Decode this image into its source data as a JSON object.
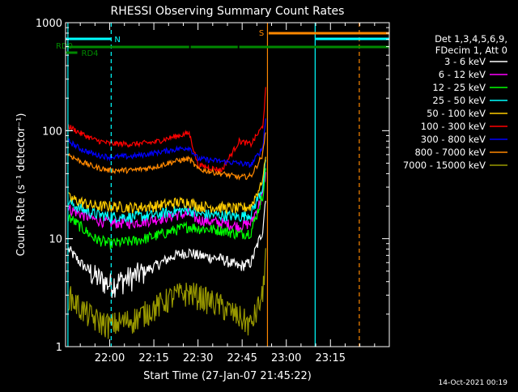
{
  "chart_data": {
    "type": "line",
    "title": "RHESSI Observing Summary Count Rates",
    "xlabel": "Start Time (27-Jan-07 21:45:22)",
    "ylabel": "Count Rate (s⁻¹ detector⁻¹)",
    "yscale": "log",
    "ylim": [
      1,
      1000
    ],
    "xlim_minutes": [
      -15,
      95
    ],
    "x_tick_labels": [
      "22:00",
      "22:15",
      "22:30",
      "22:45",
      "23:00",
      "23:15"
    ],
    "x_tick_minutes": [
      0,
      15,
      30,
      45,
      60,
      75
    ],
    "y_tick_labels": [
      "1",
      "10",
      "100",
      "1000"
    ],
    "y_tick_values": [
      1,
      10,
      100,
      1000
    ],
    "grid": false,
    "legend_position": "right",
    "legend_header": [
      "Det 1,3,4,5,6,9,",
      "FDecim 1, Att 0"
    ],
    "timestamp": "14-Oct-2021 00:19",
    "series": [
      {
        "name": "3 - 6 keV",
        "color": "#ffffff",
        "keyframes": [
          [
            -14,
            8
          ],
          [
            -10,
            6
          ],
          [
            -5,
            4.5
          ],
          [
            0,
            3.8
          ],
          [
            8,
            4.5
          ],
          [
            15,
            5.5
          ],
          [
            22,
            7
          ],
          [
            27,
            7.5
          ],
          [
            30,
            7
          ],
          [
            38,
            6.5
          ],
          [
            44,
            5.5
          ],
          [
            48,
            6
          ],
          [
            52,
            12
          ],
          [
            53,
            25
          ]
        ]
      },
      {
        "name": "6 - 12 keV",
        "color": "#ff00ff",
        "keyframes": [
          [
            -14,
            19
          ],
          [
            -10,
            17
          ],
          [
            -5,
            15
          ],
          [
            0,
            14
          ],
          [
            8,
            14
          ],
          [
            15,
            15
          ],
          [
            22,
            16.5
          ],
          [
            27,
            17
          ],
          [
            30,
            15
          ],
          [
            38,
            14
          ],
          [
            44,
            13
          ],
          [
            48,
            14
          ],
          [
            52,
            25
          ],
          [
            53,
            40
          ]
        ]
      },
      {
        "name": "12 - 25 keV",
        "color": "#00ff00",
        "keyframes": [
          [
            -14,
            16
          ],
          [
            -10,
            13
          ],
          [
            -5,
            10
          ],
          [
            0,
            9
          ],
          [
            8,
            9.5
          ],
          [
            15,
            10.5
          ],
          [
            22,
            12
          ],
          [
            27,
            13
          ],
          [
            30,
            12.5
          ],
          [
            38,
            12
          ],
          [
            44,
            11
          ],
          [
            48,
            11.5
          ],
          [
            52,
            25
          ],
          [
            53,
            45
          ]
        ]
      },
      {
        "name": "25 - 50 keV",
        "color": "#00ffff",
        "keyframes": [
          [
            -14,
            22
          ],
          [
            -10,
            19
          ],
          [
            -5,
            17
          ],
          [
            0,
            16
          ],
          [
            8,
            16
          ],
          [
            15,
            16.5
          ],
          [
            22,
            18
          ],
          [
            27,
            18.5
          ],
          [
            30,
            17
          ],
          [
            38,
            16.5
          ],
          [
            44,
            16
          ],
          [
            48,
            17
          ],
          [
            52,
            30
          ],
          [
            53,
            55
          ]
        ]
      },
      {
        "name": "50 - 100 keV",
        "color": "#ffcc00",
        "keyframes": [
          [
            -14,
            24
          ],
          [
            -10,
            22
          ],
          [
            -5,
            20
          ],
          [
            0,
            20
          ],
          [
            8,
            19.5
          ],
          [
            15,
            20
          ],
          [
            22,
            21.5
          ],
          [
            27,
            22
          ],
          [
            30,
            20
          ],
          [
            38,
            19.5
          ],
          [
            44,
            19
          ],
          [
            48,
            20
          ],
          [
            52,
            35
          ],
          [
            53,
            60
          ]
        ]
      },
      {
        "name": "100 - 300 keV",
        "color": "#ff0000",
        "keyframes": [
          [
            -14,
            110
          ],
          [
            -10,
            95
          ],
          [
            -5,
            82
          ],
          [
            0,
            76
          ],
          [
            8,
            75
          ],
          [
            15,
            78
          ],
          [
            22,
            88
          ],
          [
            27,
            95
          ],
          [
            30,
            48
          ],
          [
            38,
            43
          ],
          [
            44,
            80
          ],
          [
            48,
            75
          ],
          [
            52,
            110
          ],
          [
            53,
            240
          ]
        ]
      },
      {
        "name": "300 - 800 keV",
        "color": "#0000ff",
        "keyframes": [
          [
            -14,
            80
          ],
          [
            -10,
            68
          ],
          [
            -5,
            60
          ],
          [
            0,
            57
          ],
          [
            8,
            58
          ],
          [
            15,
            62
          ],
          [
            22,
            67
          ],
          [
            27,
            70
          ],
          [
            30,
            55
          ],
          [
            38,
            52
          ],
          [
            44,
            50
          ],
          [
            48,
            48
          ],
          [
            52,
            70
          ],
          [
            53,
            130
          ]
        ]
      },
      {
        "name": "800 - 7000 keV",
        "color": "#ff8800",
        "keyframes": [
          [
            -14,
            60
          ],
          [
            -10,
            52
          ],
          [
            -5,
            46
          ],
          [
            0,
            43
          ],
          [
            8,
            43
          ],
          [
            15,
            46
          ],
          [
            22,
            52
          ],
          [
            27,
            55
          ],
          [
            30,
            44
          ],
          [
            38,
            40
          ],
          [
            44,
            37
          ],
          [
            48,
            38
          ],
          [
            52,
            60
          ],
          [
            53,
            100
          ]
        ]
      },
      {
        "name": "7000 - 15000 keV",
        "color": "#999900",
        "keyframes": [
          [
            -14,
            3
          ],
          [
            -10,
            2.3
          ],
          [
            -5,
            1.8
          ],
          [
            0,
            1.6
          ],
          [
            8,
            1.8
          ],
          [
            15,
            2.3
          ],
          [
            22,
            3
          ],
          [
            27,
            3.2
          ],
          [
            30,
            3
          ],
          [
            38,
            2.4
          ],
          [
            44,
            1.9
          ],
          [
            48,
            1.6
          ],
          [
            52,
            3
          ],
          [
            53,
            8
          ]
        ]
      }
    ],
    "vertical_lines": [
      {
        "minute": -14.2,
        "color": "#00ffff",
        "style": "solid"
      },
      {
        "minute": 0.5,
        "color": "#00ffff",
        "style": "dashed"
      },
      {
        "minute": 53.6,
        "color": "#ff8800",
        "style": "solid"
      },
      {
        "minute": 69.8,
        "color": "#00ffff",
        "style": "solid"
      },
      {
        "minute": 84.8,
        "color": "#ff8800",
        "style": "dashed"
      }
    ],
    "status_bars": [
      {
        "label": "RD0",
        "color": "#008800",
        "level": 1,
        "segments": [
          [
            -14,
            27
          ],
          [
            27.5,
            43.5
          ],
          [
            44,
            95
          ]
        ]
      },
      {
        "label": "RD4",
        "color": "#008800",
        "level": 0,
        "segments": [
          [
            -15,
            -11
          ]
        ]
      },
      {
        "label": "N",
        "color": "#00ffff",
        "level": 2,
        "segments": [
          [
            -15,
            0.5
          ]
        ]
      },
      {
        "label": "S",
        "color": "#ff8800",
        "level": 3,
        "segments": [
          [
            54,
            95
          ]
        ]
      },
      {
        "label": "",
        "color": "#00ffff",
        "level": 2,
        "segments": [
          [
            70,
            95
          ]
        ]
      }
    ]
  }
}
